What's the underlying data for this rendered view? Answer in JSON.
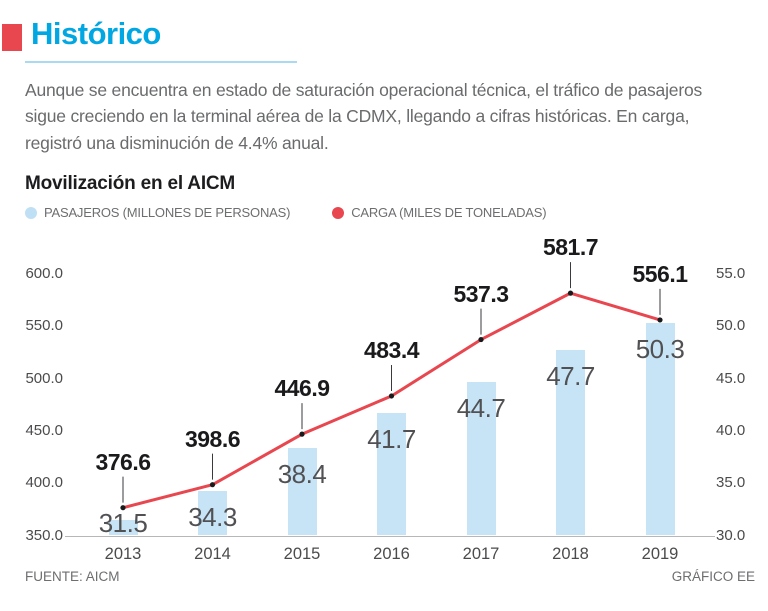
{
  "header": {
    "title": "Histórico"
  },
  "intro": "Aunque se encuentra en estado de saturación operacional técnica, el tráfico de pasajeros sigue creciendo en la terminal aérea de la CDMX, llegando a cifras históricas. En carga, registró una disminución de 4.4% anual.",
  "legend": [
    {
      "label": "PASAJEROS (MILLONES DE PERSONAS)",
      "color": "#bfe0f4"
    },
    {
      "label": "CARGA (MILES DE TONELADAS)",
      "color": "#e8474f"
    }
  ],
  "footer": {
    "source": "FUENTE: AICM",
    "credit": "GRÁFICO EE"
  },
  "colors": {
    "title": "#00a7e3",
    "title_bullet": "#e8474f",
    "title_underline": "#aad9f2",
    "bar_fill": "#c6e4f6",
    "line_stroke": "#e8474f",
    "point_dot": "#1a1a1c",
    "leader_line": "#3a3a3c"
  },
  "chart_data": {
    "type": "bar",
    "title": "Movilización en el AICM",
    "categories": [
      "2013",
      "2014",
      "2015",
      "2016",
      "2017",
      "2018",
      "2019"
    ],
    "series": [
      {
        "name": "PASAJEROS (MILLONES DE PERSONAS)",
        "type": "bar",
        "axis": "right",
        "values": [
          31.5,
          34.3,
          38.4,
          41.7,
          44.7,
          47.7,
          50.3
        ]
      },
      {
        "name": "CARGA (MILES DE TONELADAS)",
        "type": "line",
        "axis": "left",
        "values": [
          376.6,
          398.6,
          446.9,
          483.4,
          537.3,
          581.7,
          556.1
        ]
      }
    ],
    "left_axis": {
      "min": 350,
      "max": 600,
      "ticks": [
        350,
        400,
        450,
        500,
        550,
        600
      ],
      "grid": false
    },
    "right_axis": {
      "min": 30,
      "max": 55,
      "ticks": [
        30,
        35,
        40,
        45,
        50,
        55
      ],
      "grid": false
    },
    "legend_position": "top"
  }
}
